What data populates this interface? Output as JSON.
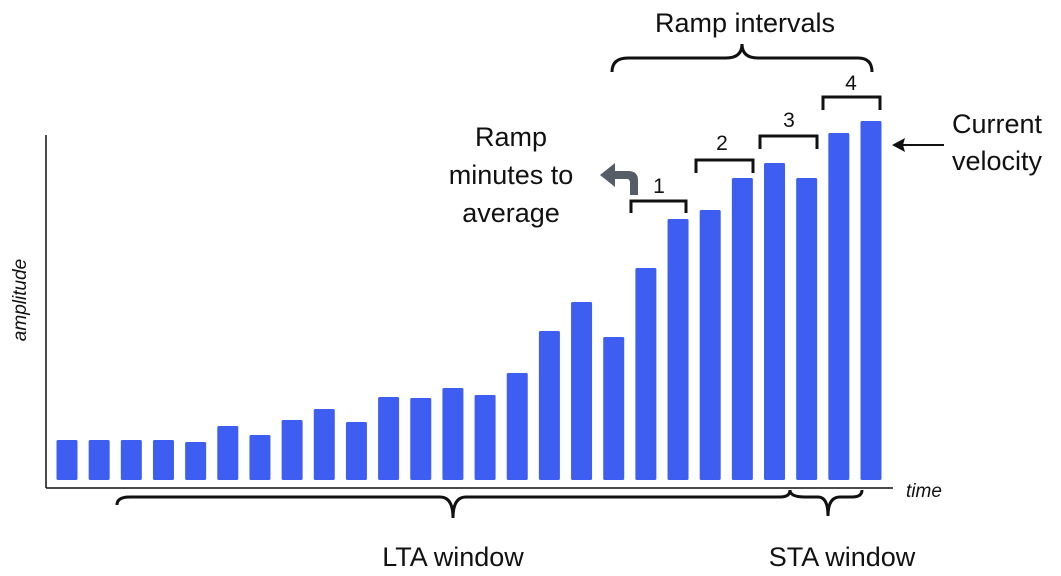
{
  "chart_data": {
    "type": "bar",
    "y_label": "amplitude",
    "x_label": "time",
    "values": [
      40,
      40,
      40,
      40,
      38,
      54,
      45,
      60,
      71,
      58,
      83,
      82,
      92,
      85,
      107,
      149,
      178,
      143,
      212,
      261,
      270,
      302,
      317,
      302,
      347,
      359
    ],
    "color": "#3d5ef0",
    "ylim": [
      0,
      360
    ],
    "annotations": {
      "ramp_intervals": "Ramp intervals",
      "ramp_minutes": [
        "Ramp",
        "minutes to",
        "average"
      ],
      "interval_numbers": [
        "1",
        "2",
        "3",
        "4"
      ],
      "current_velocity": [
        "Current",
        "velocity"
      ],
      "lta_window": "LTA window",
      "sta_window": "STA window"
    }
  }
}
